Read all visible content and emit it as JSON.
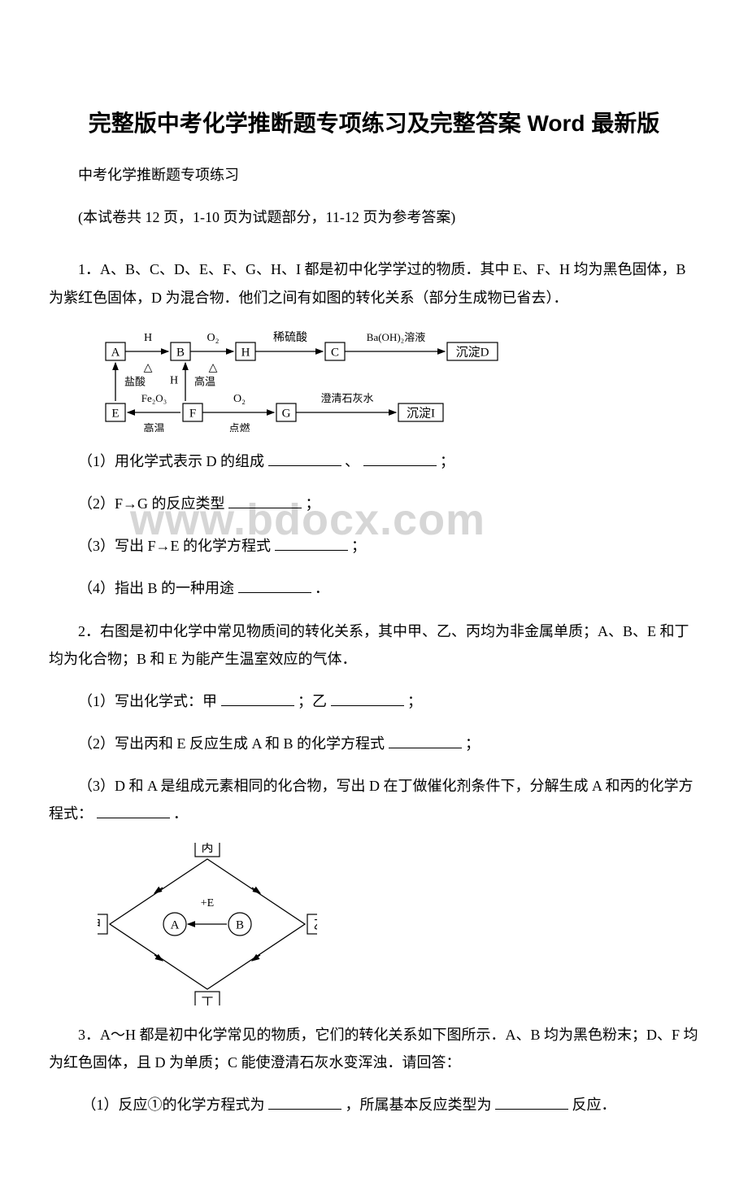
{
  "title": "完整版中考化学推断题专项练习及完整答案 Word 最新版",
  "intro1": "中考化学推断题专项练习",
  "intro2": "(本试卷共 12 页，1-10 页为试题部分，11-12 页为参考答案)",
  "q1": {
    "stem": "1．A、B、C、D、E、F、G、H、I 都是初中化学学过的物质．其中 E、F、H 均为黑色固体，B 为紫红色固体，D 为混合物．他们之间有如图的转化关系（部分生成物已省去）．",
    "p1a": "（1）用化学式表示 D 的组成",
    "p1b": "、",
    "p1c": "；",
    "p2a": "（2）F→G 的反应类型",
    "p2b": "；",
    "p3a": "（3）写出 F→E 的化学方程式",
    "p3b": "；",
    "p4a": "（4）指出 B 的一种用途",
    "p4b": "．"
  },
  "q2": {
    "stem": "2．右图是初中化学中常见物质间的转化关系，其中甲、乙、丙均为非金属单质；A、B、E 和丁均为化合物；B 和 E 为能产生温室效应的气体．",
    "p1a": "（1）写出化学式：甲",
    "p1b": "；乙",
    "p1c": "；",
    "p2a": "（2）写出丙和 E 反应生成 A 和 B 的化学方程式",
    "p2b": "；",
    "p3a": "（3）D 和 A 是组成元素相同的化合物，写出 D 在丁做催化剂条件下，分解生成 A 和丙的化学方程式：",
    "p3b": "．"
  },
  "q3": {
    "stem": "3．A～H 都是初中化学常见的物质，它们的转化关系如下图所示．A、B 均为黑色粉末；D、F 均为红色固体，且 D 为单质；C 能使澄清石灰水变浑浊．请回答：",
    "p1a": "（1）反应①的化学方程式为",
    "p1b": "，所属基本反应类型为",
    "p1c": "反应．"
  },
  "watermark": "www.bdocx.com",
  "d1": {
    "nodes": {
      "A": "A",
      "B": "B",
      "H2": "H",
      "C": "C",
      "D": "沉淀D",
      "E": "E",
      "F": "F",
      "G": "G",
      "I": "沉淀I"
    },
    "edge_labels": {
      "AB_top": "H",
      "AB_bot": "△",
      "BH_top": "O₂",
      "BH_bot": "△",
      "HC": "稀硫酸",
      "CD": "Ba(OH)₂溶液",
      "EA_left": "盐酸",
      "FA_top": "H",
      "FA_bot": "高温",
      "EF_top": "Fe₂O₃",
      "EF_bot": "高温",
      "FG_top": "O₂",
      "FG_bot": "点燃",
      "GI": "澄清石灰水"
    },
    "colors": {
      "stroke": "#000000",
      "fill": "#ffffff",
      "text": "#000000"
    },
    "font": 15
  },
  "d2": {
    "nodes": {
      "jia": "甲",
      "yi": "乙",
      "bing": "丙",
      "ding": "丁",
      "A": "A",
      "B": "B"
    },
    "edge_label": "+E",
    "colors": {
      "stroke": "#000000",
      "fill": "#ffffff",
      "text": "#000000"
    },
    "font": 15
  }
}
